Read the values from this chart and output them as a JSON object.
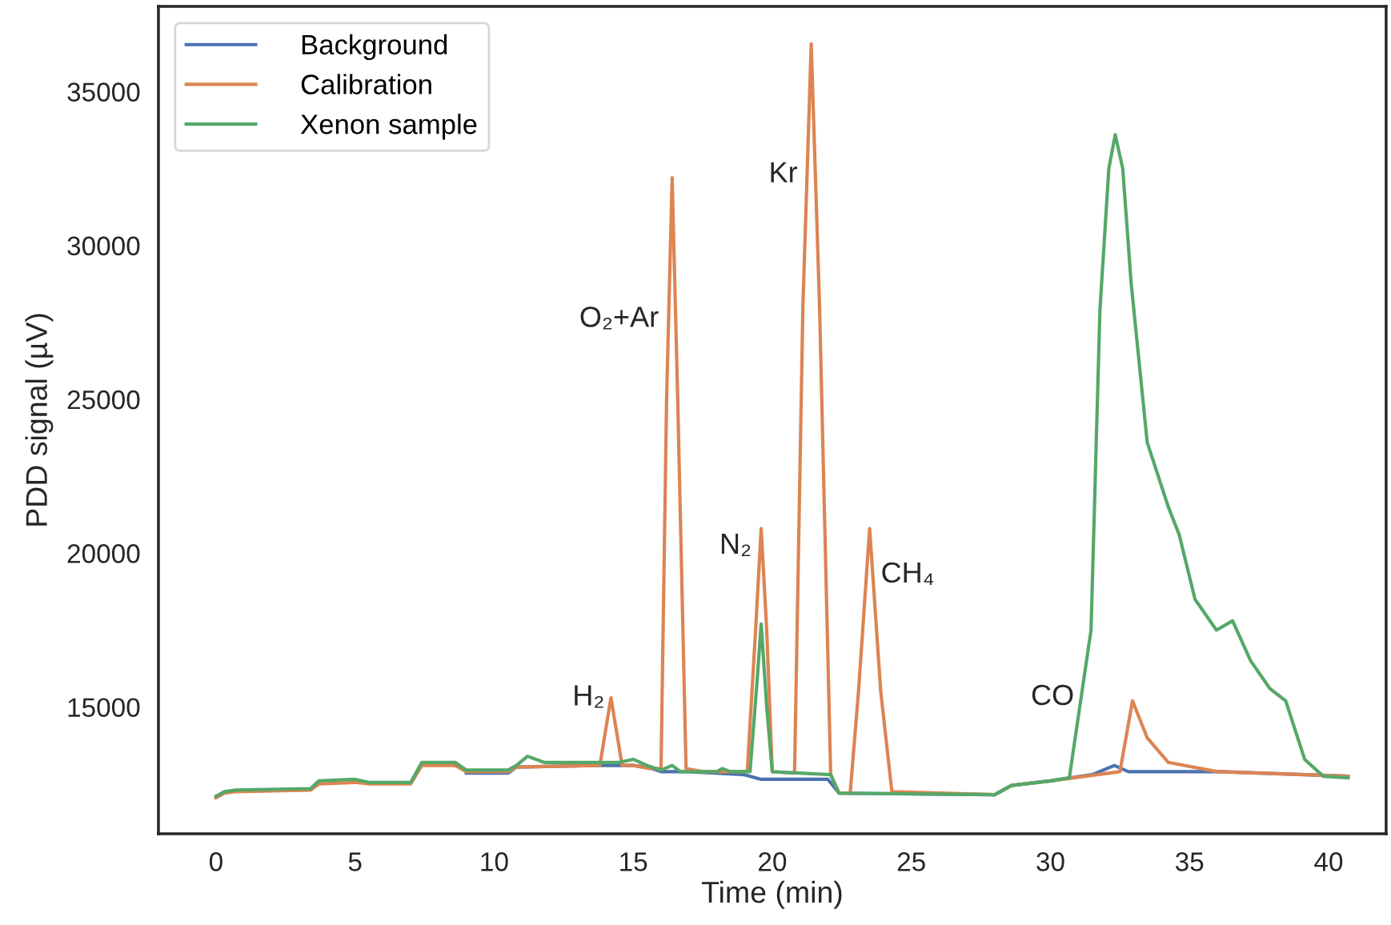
{
  "chart_data": {
    "type": "line",
    "xlabel": "Time (min)",
    "ylabel": "PDD signal (µV)",
    "xlim": [
      -2.07,
      42.07
    ],
    "ylim": [
      10880,
      37770
    ],
    "xticks": [
      0,
      5,
      10,
      15,
      20,
      25,
      30,
      35,
      40
    ],
    "yticks": [
      15000,
      20000,
      25000,
      30000,
      35000
    ],
    "grid": false,
    "legend": "top left",
    "marker": "none",
    "line_style": "solid",
    "series": [
      {
        "name": "Background",
        "color": "#4c72b0",
        "x": [
          9.0,
          10.5,
          10.8,
          13.5,
          15.0,
          15.5,
          16.0,
          17.0,
          19.0,
          19.6,
          22.0,
          22.4,
          28.0,
          28.6,
          30.0,
          31.5,
          32.3,
          32.8,
          36.0,
          40.7
        ],
        "values": [
          12850,
          12850,
          13050,
          13100,
          13100,
          13050,
          12900,
          12900,
          12800,
          12650,
          12650,
          12200,
          12150,
          12450,
          12600,
          12800,
          13100,
          12900,
          12900,
          12750
        ]
      },
      {
        "name": "Calibration",
        "color": "#dd8452",
        "x": [
          0,
          0.3,
          0.7,
          3.4,
          3.7,
          5.0,
          5.5,
          7.0,
          7.4,
          8.6,
          9.0,
          10.5,
          10.8,
          13.8,
          14.0,
          14.2,
          14.4,
          14.6,
          15.0,
          15.6,
          16.0,
          16.2,
          16.4,
          16.6,
          16.9,
          17.5,
          19.1,
          19.4,
          19.6,
          19.8,
          20.0,
          20.8,
          21.1,
          21.4,
          21.7,
          22.1,
          22.4,
          22.8,
          23.1,
          23.5,
          23.9,
          24.3,
          28.0,
          28.6,
          30.0,
          32.5,
          32.95,
          33.48,
          34.24,
          36.0,
          40.7
        ],
        "values": [
          12050,
          12200,
          12250,
          12300,
          12500,
          12550,
          12500,
          12500,
          13100,
          13100,
          12900,
          12900,
          13050,
          13100,
          14200,
          15300,
          14200,
          13100,
          13100,
          13000,
          13000,
          25000,
          32200,
          25000,
          13000,
          12900,
          12900,
          17500,
          20800,
          17500,
          12900,
          12850,
          28000,
          36550,
          28000,
          12800,
          12200,
          12200,
          15500,
          20800,
          15500,
          12250,
          12150,
          12450,
          12600,
          12900,
          15200,
          14000,
          13200,
          12900,
          12750
        ]
      },
      {
        "name": "Xenon sample",
        "color": "#55a868",
        "x": [
          0,
          0.3,
          0.7,
          3.4,
          3.7,
          5.0,
          5.5,
          7.0,
          7.4,
          8.6,
          9.0,
          10.5,
          10.8,
          11.2,
          11.8,
          14.5,
          15.0,
          15.5,
          16.0,
          16.4,
          16.7,
          18.0,
          18.2,
          18.5,
          19.2,
          19.45,
          19.6,
          19.8,
          20.0,
          22.1,
          22.4,
          28.0,
          28.6,
          30.0,
          30.68,
          31.46,
          31.78,
          32.1,
          32.33,
          32.6,
          32.9,
          33.48,
          34.24,
          34.63,
          35.2,
          35.97,
          36.55,
          37.2,
          37.89,
          38.46,
          39.14,
          39.81,
          40.7
        ],
        "values": [
          12100,
          12250,
          12300,
          12350,
          12600,
          12650,
          12550,
          12550,
          13200,
          13200,
          12950,
          12950,
          13100,
          13400,
          13200,
          13200,
          13300,
          13100,
          12950,
          13100,
          12900,
          12900,
          13000,
          12900,
          12900,
          15800,
          17700,
          15000,
          12900,
          12800,
          12200,
          12150,
          12450,
          12600,
          12700,
          17500,
          27900,
          32500,
          33600,
          32500,
          28800,
          23600,
          21500,
          20600,
          18500,
          17500,
          17800,
          16500,
          15600,
          15200,
          13300,
          12750,
          12700
        ]
      }
    ],
    "annotations": [
      {
        "text": "H₂",
        "x": 14.2,
        "y": 15300
      },
      {
        "text": "O₂+Ar",
        "x": 16.15,
        "y": 27600
      },
      {
        "text": "N₂",
        "x": 19.6,
        "y": 20800
      },
      {
        "text": "Kr",
        "x": 21.2,
        "y": 32300
      },
      {
        "text": "CH₄",
        "x": 23.5,
        "y": 20800
      },
      {
        "text": "CO",
        "x": 31.2,
        "y": 15000
      }
    ]
  }
}
